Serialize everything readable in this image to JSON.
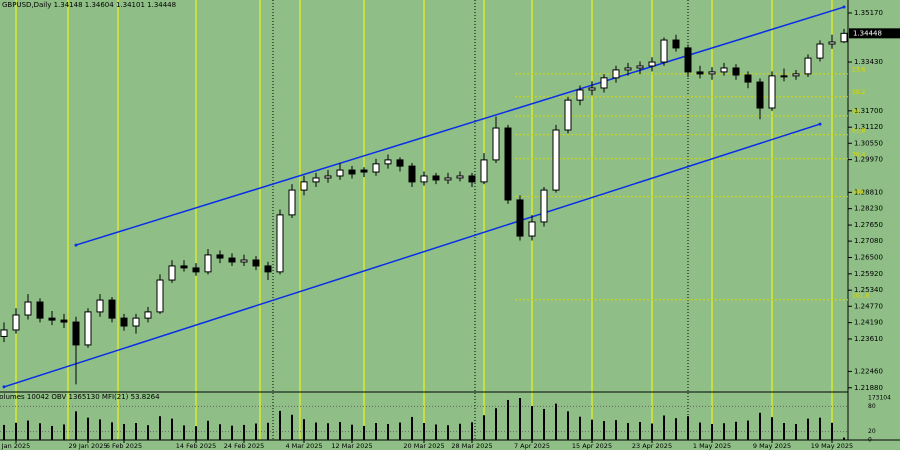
{
  "chart_data": {
    "type": "candlestick",
    "title": "GBPUSD,Daily",
    "indicator_title": "Volumes 10042 OBV 1365130 MFI(21) 53.8264",
    "categories": [
      null,
      "Jan 2025",
      null,
      null,
      null,
      null,
      null,
      "29 Jan 2025",
      null,
      null,
      "6 Feb 2025",
      null,
      null,
      null,
      null,
      null,
      "14 Feb 2025",
      null,
      null,
      null,
      "24 Feb 2025",
      null,
      null,
      null,
      null,
      "4 Mar 2025",
      null,
      null,
      null,
      "12 Mar 2025",
      null,
      null,
      null,
      null,
      null,
      "20 Mar 2025",
      null,
      null,
      null,
      "28 Mar 2025",
      null,
      null,
      null,
      null,
      "7 Apr 2025",
      null,
      null,
      null,
      null,
      "15 Apr 2025",
      null,
      null,
      null,
      null,
      "23 Apr 2025",
      null,
      null,
      null,
      null,
      "1 May 2025",
      null,
      null,
      null,
      null,
      "9 May 2025",
      null,
      null,
      null,
      null,
      "19 May 2025",
      null
    ],
    "candles": [
      [
        1.237,
        1.242,
        1.235,
        1.2393
      ],
      [
        1.2393,
        1.247,
        1.238,
        1.2446
      ],
      [
        1.2446,
        1.252,
        1.243,
        1.2492
      ],
      [
        1.2492,
        1.2505,
        1.242,
        1.2435
      ],
      [
        1.2435,
        1.246,
        1.241,
        1.2428
      ],
      [
        1.2428,
        1.245,
        1.24,
        1.2421
      ],
      [
        1.2421,
        1.244,
        1.22,
        1.234
      ],
      [
        1.234,
        1.247,
        1.233,
        1.2457
      ],
      [
        1.2457,
        1.252,
        1.244,
        1.2499
      ],
      [
        1.2499,
        1.251,
        1.242,
        1.2435
      ],
      [
        1.2435,
        1.245,
        1.239,
        1.2407
      ],
      [
        1.2407,
        1.245,
        1.238,
        1.2435
      ],
      [
        1.2435,
        1.2475,
        1.242,
        1.2457
      ],
      [
        1.2457,
        1.259,
        1.245,
        1.257
      ],
      [
        1.257,
        1.264,
        1.256,
        1.262
      ],
      [
        1.262,
        1.264,
        1.26,
        1.2613
      ],
      [
        1.2613,
        1.263,
        1.2585,
        1.2599
      ],
      [
        1.2599,
        1.268,
        1.259,
        1.2659
      ],
      [
        1.2659,
        1.2675,
        1.263,
        1.2648
      ],
      [
        1.2648,
        1.2665,
        1.262,
        1.2634
      ],
      [
        1.2634,
        1.266,
        1.262,
        1.2641
      ],
      [
        1.2641,
        1.2655,
        1.2605,
        1.262
      ],
      [
        1.262,
        1.2635,
        1.257,
        1.2599
      ],
      [
        1.2599,
        1.282,
        1.259,
        1.2801
      ],
      [
        1.2801,
        1.291,
        1.279,
        1.2889
      ],
      [
        1.2889,
        1.294,
        1.287,
        1.2918
      ],
      [
        1.2918,
        1.295,
        1.29,
        1.2932
      ],
      [
        1.2932,
        1.296,
        1.2915,
        1.2939
      ],
      [
        1.2939,
        1.2985,
        1.2925,
        1.296
      ],
      [
        1.296,
        1.2975,
        1.293,
        1.2946
      ],
      [
        1.296,
        1.297,
        1.2935,
        1.2953
      ],
      [
        1.2953,
        1.3,
        1.294,
        1.2982
      ],
      [
        1.2982,
        1.3015,
        1.2965,
        1.2996
      ],
      [
        1.2996,
        1.3005,
        1.2955,
        1.2974
      ],
      [
        1.2974,
        1.2985,
        1.29,
        1.2918
      ],
      [
        1.2918,
        1.2955,
        1.2905,
        1.2939
      ],
      [
        1.2939,
        1.295,
        1.291,
        1.2925
      ],
      [
        1.2925,
        1.295,
        1.291,
        1.2932
      ],
      [
        1.2932,
        1.2955,
        1.292,
        1.2939
      ],
      [
        1.2939,
        1.295,
        1.29,
        1.2918
      ],
      [
        1.2918,
        1.302,
        1.291,
        1.2996
      ],
      [
        1.2996,
        1.315,
        1.2985,
        1.3109
      ],
      [
        1.3109,
        1.312,
        1.284,
        1.2854
      ],
      [
        1.2854,
        1.287,
        1.271,
        1.2726
      ],
      [
        1.2726,
        1.28,
        1.271,
        1.2776
      ],
      [
        1.2776,
        1.29,
        1.276,
        1.2889
      ],
      [
        1.2889,
        1.312,
        1.288,
        1.3102
      ],
      [
        1.3102,
        1.322,
        1.309,
        1.3208
      ],
      [
        1.3208,
        1.326,
        1.319,
        1.3244
      ],
      [
        1.3244,
        1.3275,
        1.3225,
        1.3251
      ],
      [
        1.3251,
        1.33,
        1.3235,
        1.3287
      ],
      [
        1.3287,
        1.333,
        1.327,
        1.3315
      ],
      [
        1.3315,
        1.334,
        1.3295,
        1.3322
      ],
      [
        1.3322,
        1.3345,
        1.33,
        1.3329
      ],
      [
        1.3329,
        1.336,
        1.331,
        1.3343
      ],
      [
        1.3343,
        1.343,
        1.333,
        1.3421
      ],
      [
        1.3421,
        1.344,
        1.338,
        1.3393
      ],
      [
        1.3393,
        1.3405,
        1.329,
        1.3308
      ],
      [
        1.3308,
        1.333,
        1.3285,
        1.3301
      ],
      [
        1.3301,
        1.3325,
        1.328,
        1.3308
      ],
      [
        1.3308,
        1.334,
        1.3295,
        1.3322
      ],
      [
        1.3322,
        1.3335,
        1.328,
        1.3297
      ],
      [
        1.3297,
        1.331,
        1.325,
        1.3272
      ],
      [
        1.3272,
        1.3285,
        1.314,
        1.318
      ],
      [
        1.318,
        1.331,
        1.317,
        1.3294
      ],
      [
        1.3294,
        1.332,
        1.3275,
        1.3294
      ],
      [
        1.3294,
        1.3315,
        1.328,
        1.3301
      ],
      [
        1.3301,
        1.337,
        1.329,
        1.3357
      ],
      [
        1.3357,
        1.342,
        1.3345,
        1.3407
      ],
      [
        1.3407,
        1.344,
        1.339,
        1.3414
      ],
      [
        1.34148,
        1.34604,
        1.34101,
        1.34448
      ]
    ],
    "volumes": [
      62000,
      71000,
      80000,
      69000,
      58000,
      64000,
      118000,
      92000,
      85000,
      73000,
      66000,
      70000,
      61000,
      98000,
      88000,
      60000,
      57000,
      79000,
      65000,
      59000,
      62000,
      68000,
      71000,
      120000,
      104000,
      86000,
      72000,
      69000,
      74000,
      63000,
      58000,
      70000,
      66000,
      72000,
      95000,
      70000,
      64000,
      61000,
      67000,
      73000,
      102000,
      131000,
      165000,
      173104,
      140000,
      128000,
      150000,
      118000,
      96000,
      84000,
      78000,
      82000,
      70000,
      74000,
      68000,
      101000,
      90000,
      98000,
      72000,
      66000,
      69000,
      75000,
      80000,
      112000,
      94000,
      70000,
      66000,
      88000,
      92000,
      71000,
      10042
    ],
    "ylim": [
      1.2173,
      1.3563
    ],
    "yticks": [
      {
        "value": 1.3517,
        "label": "1.35170"
      },
      {
        "value": 1.3343,
        "label": "1.33430"
      },
      {
        "value": 1.317,
        "label": "1.31700"
      },
      {
        "value": 1.3112,
        "label": "1.31120"
      },
      {
        "value": 1.3055,
        "label": "1.30550"
      },
      {
        "value": 1.2997,
        "label": "1.29970"
      },
      {
        "value": 1.2881,
        "label": "1.28810"
      },
      {
        "value": 1.2823,
        "label": "1.28230"
      },
      {
        "value": 1.2765,
        "label": "1.27650"
      },
      {
        "value": 1.2708,
        "label": "1.27080"
      },
      {
        "value": 1.265,
        "label": "1.26500"
      },
      {
        "value": 1.2592,
        "label": "1.25920"
      },
      {
        "value": 1.2534,
        "label": "1.25340"
      },
      {
        "value": 1.2477,
        "label": "1.24770"
      },
      {
        "value": 1.2419,
        "label": "1.24190"
      },
      {
        "value": 1.2361,
        "label": "1.23610"
      },
      {
        "value": 1.2246,
        "label": "1.22460"
      },
      {
        "value": 1.2188,
        "label": "1.21880"
      }
    ],
    "fib_levels": [
      23.6,
      38.2,
      50.0,
      61.8,
      76.4,
      100.0,
      161.8
    ],
    "fib_prices": [
      1.3301,
      1.322,
      1.3152,
      1.3085,
      1.3,
      1.2866,
      1.25
    ],
    "channel_upper": {
      "x": [
        6,
        70
      ],
      "y": [
        1.2694,
        1.3538
      ]
    },
    "channel_lower": {
      "x": [
        0,
        68
      ],
      "y": [
        1.2191,
        1.3123
      ]
    },
    "volume_ylim": [
      0,
      173104
    ],
    "volume_yticks": [
      173104,
      0
    ],
    "mfi_ylim": [
      0,
      100
    ],
    "mfi_yticks": [
      80,
      20
    ],
    "up_color": "#ffffff",
    "down_color": "#000000",
    "channel_color": "#0a2ee8",
    "fib_color": "#d8d800"
  }
}
